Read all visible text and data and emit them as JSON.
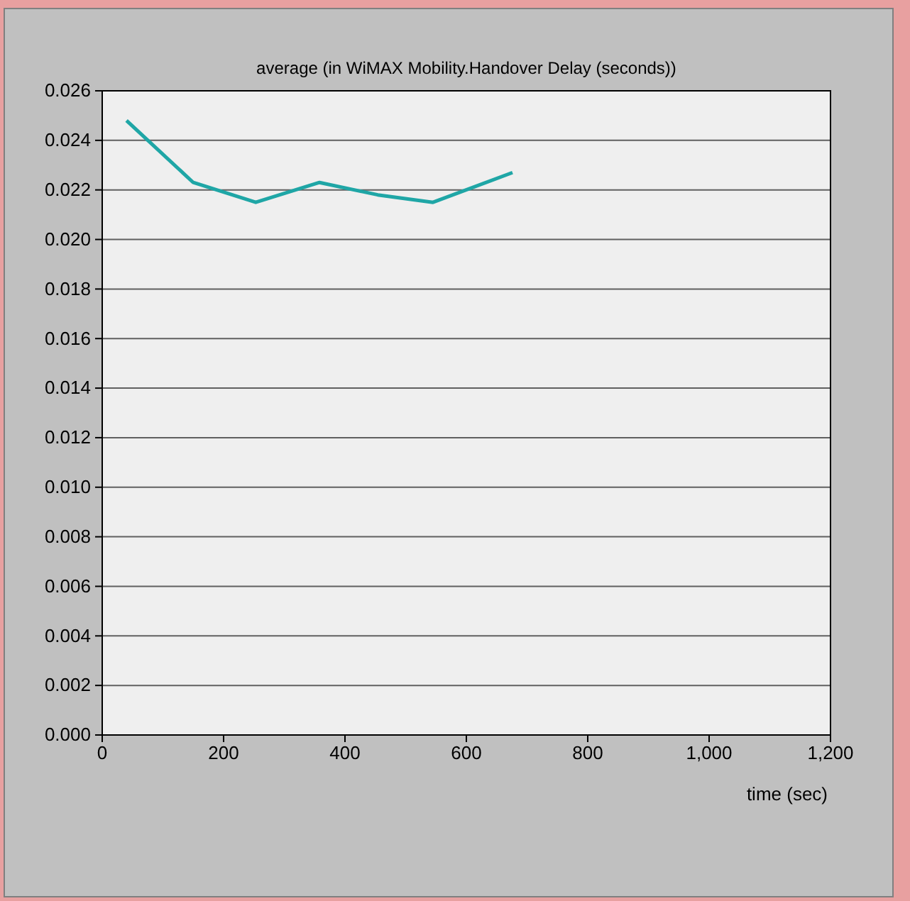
{
  "chart_data": {
    "type": "line",
    "title": "average (in WiMAX Mobility.Handover Delay (seconds))",
    "xlabel": "time (sec)",
    "x": [
      40,
      150,
      253,
      358,
      454,
      545,
      676
    ],
    "series": [
      {
        "color": "#1fa6a6",
        "values": [
          0.0248,
          0.0223,
          0.0215,
          0.0223,
          0.0218,
          0.0215,
          0.0227
        ]
      }
    ],
    "xlim": [
      0,
      1200
    ],
    "xticks": [
      0,
      200,
      400,
      600,
      800,
      {
        "value": 1000,
        "label": "1,000"
      },
      {
        "value": 1200,
        "label": "1,200"
      }
    ],
    "ylim": [
      0,
      0.026
    ],
    "yticks": [
      {
        "value": 0,
        "label": "0.000"
      },
      {
        "value": 0.002,
        "label": "0.002"
      },
      {
        "value": 0.004,
        "label": "0.004"
      },
      {
        "value": 0.006,
        "label": "0.006"
      },
      {
        "value": 0.008,
        "label": "0.008"
      },
      {
        "value": 0.01,
        "label": "0.010"
      },
      {
        "value": 0.012,
        "label": "0.012"
      },
      {
        "value": 0.014,
        "label": "0.014"
      },
      {
        "value": 0.016,
        "label": "0.016"
      },
      {
        "value": 0.018,
        "label": "0.018"
      },
      {
        "value": 0.02,
        "label": "0.020"
      },
      {
        "value": 0.022,
        "label": "0.022"
      },
      {
        "value": 0.024,
        "label": "0.024"
      },
      {
        "value": 0.026,
        "label": "0.026"
      }
    ],
    "grid": "y",
    "marker": "none",
    "line_style": "solid"
  }
}
